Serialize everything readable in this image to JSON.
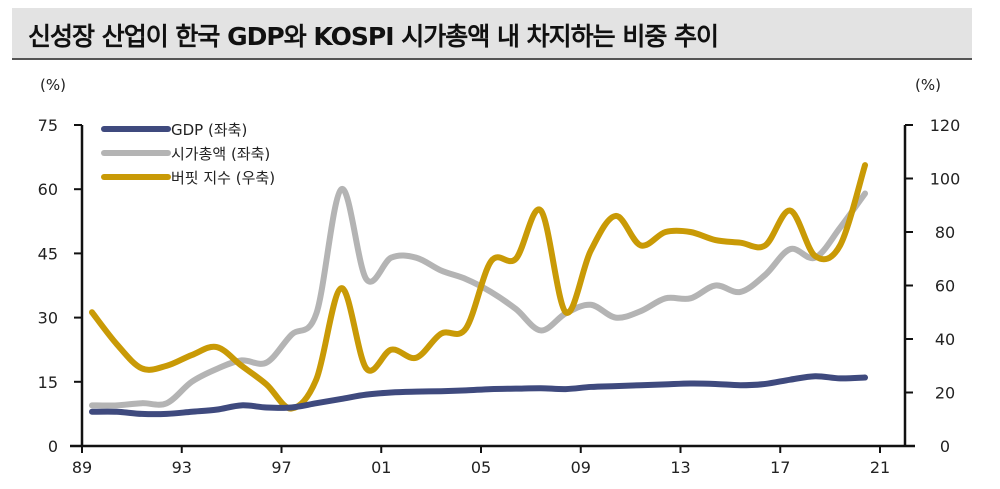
{
  "title": "신성장 산업이 한국 GDP와 KOSPI 시가총액 내 차지하는 비중 추이",
  "chart_data": {
    "type": "line",
    "title": "신성장 산업이 한국 GDP와 KOSPI 시가총액 내 차지하는 비중 추이",
    "left_unit": "(%)",
    "right_unit": "(%)",
    "x_ticks": [
      "89",
      "93",
      "97",
      "01",
      "05",
      "09",
      "13",
      "17",
      "21"
    ],
    "x_range": [
      1989,
      2021
    ],
    "y_left": {
      "range": [
        0,
        75
      ],
      "ticks": [
        "0",
        "15",
        "30",
        "45",
        "60",
        "75"
      ]
    },
    "y_right": {
      "range": [
        0,
        120
      ],
      "ticks": [
        "0",
        "20",
        "40",
        "60",
        "80",
        "100",
        "120"
      ]
    },
    "grid": false,
    "legend_position": "top-left",
    "x": [
      1989,
      1990,
      1991,
      1992,
      1993,
      1994,
      1995,
      1996,
      1997,
      1998,
      1999,
      2000,
      2001,
      2002,
      2003,
      2004,
      2005,
      2006,
      2007,
      2008,
      2009,
      2010,
      2011,
      2012,
      2013,
      2014,
      2015,
      2016,
      2017,
      2018,
      2019,
      2020
    ],
    "series": [
      {
        "name": "GDP (좌축)",
        "axis": "left",
        "color": "#3f4a7e",
        "values": [
          8,
          8,
          7.5,
          7.5,
          8,
          8.5,
          9.5,
          9,
          9,
          10,
          11,
          12,
          12.5,
          12.7,
          12.8,
          13,
          13.3,
          13.4,
          13.5,
          13.3,
          13.8,
          14,
          14.2,
          14.4,
          14.6,
          14.5,
          14.2,
          14.5,
          15.5,
          16.3,
          15.8,
          16
        ]
      },
      {
        "name": "시가총액 (좌축)",
        "axis": "left",
        "color": "#b4b4b4",
        "values": [
          9.5,
          9.5,
          10,
          10,
          15,
          18,
          20,
          19.5,
          26,
          31,
          60,
          39,
          44,
          44,
          41,
          39,
          36,
          32,
          27,
          31,
          33,
          30,
          31.5,
          34.5,
          34.5,
          37.5,
          36,
          40,
          46,
          44,
          51,
          59
        ]
      },
      {
        "name": "버핏 지수 (우축)",
        "axis": "right",
        "color": "#c99a06",
        "values": [
          50,
          38,
          29,
          30,
          34,
          37,
          30,
          23,
          14,
          25,
          59,
          29,
          36,
          33,
          42,
          44,
          69,
          70,
          88,
          50,
          73,
          86,
          75,
          80,
          80,
          77,
          76,
          75,
          88,
          71,
          75,
          105
        ]
      }
    ]
  }
}
